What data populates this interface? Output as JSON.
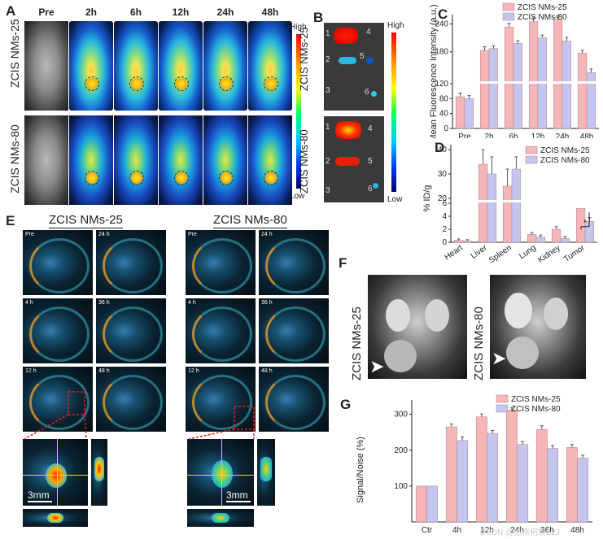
{
  "panels": {
    "A": {
      "letter": "A",
      "times": [
        "Pre",
        "2h",
        "6h",
        "12h",
        "24h",
        "48h"
      ],
      "rows": [
        "ZCIS NMs-25",
        "ZCIS NMs-80"
      ],
      "scale_high": "High",
      "scale_low": "Low"
    },
    "B": {
      "letter": "B",
      "rows": [
        "ZCIS NMs-25",
        "ZCIS NMs-80"
      ],
      "organ_numbers": [
        "1",
        "2",
        "3",
        "4",
        "5",
        "6"
      ],
      "scale_high": "High",
      "scale_low": "Low"
    },
    "E": {
      "letter": "E",
      "groups": [
        "ZCIS NMs-25",
        "ZCIS NMs-80"
      ],
      "times": [
        "Pre",
        "24 h",
        "4 h",
        "36 h",
        "12 h",
        "48 h"
      ],
      "scale_text": "3mm"
    },
    "F": {
      "letter": "F",
      "groups": [
        "ZCIS NMs-25",
        "ZCIS NMs-80"
      ]
    },
    "watermark": "CSDN @无奈何杨123"
  },
  "chart_data": [
    {
      "panel": "C",
      "type": "bar",
      "categories": [
        "Pre",
        "2h",
        "6h",
        "12h",
        "24h",
        "48h"
      ],
      "series": [
        {
          "name": "ZCIS NMs-25",
          "values": [
            85,
            183,
            233,
            245,
            250,
            177
          ],
          "errors": [
            10,
            8,
            8,
            8,
            8,
            6
          ]
        },
        {
          "name": "ZCIS NMs-80",
          "values": [
            80,
            187,
            198,
            210,
            203,
            135
          ],
          "errors": [
            8,
            6,
            6,
            6,
            8,
            8
          ]
        }
      ],
      "ylabel": "Mean Fluorescence Intensity (a.u.)",
      "yticks": [
        "0",
        "40",
        "80",
        "120",
        "180",
        "240"
      ],
      "legend_placement": "top-right",
      "colors": [
        "#f4b6b6",
        "#c5c6ef"
      ]
    },
    {
      "panel": "D",
      "type": "bar",
      "categories": [
        "Heart",
        "Liver",
        "Spleen",
        "Lung",
        "Kidney",
        "Tumor"
      ],
      "series": [
        {
          "name": "ZCIS NMs-25",
          "values": [
            0.3,
            34,
            25,
            1.2,
            2,
            5.2
          ],
          "errors": [
            0.2,
            6,
            7,
            0.3,
            0.4,
            1.2
          ]
        },
        {
          "name": "ZCIS NMs-80",
          "values": [
            0.2,
            30,
            32,
            0.8,
            0.6,
            3.2
          ],
          "errors": [
            0.2,
            7,
            5,
            0.3,
            0.3,
            0.6
          ]
        }
      ],
      "ylabel": "% ID/g",
      "yticks": [
        "0",
        "2",
        "4",
        "6",
        "20",
        "30",
        "40"
      ],
      "annotation": "*",
      "legend_placement": "top-right",
      "colors": [
        "#f4b6b6",
        "#c5c6ef"
      ]
    },
    {
      "panel": "G",
      "type": "bar",
      "categories": [
        "Ctr",
        "4h",
        "12h",
        "24h",
        "36h",
        "48h"
      ],
      "series": [
        {
          "name": "ZCIS NMs-25",
          "values": [
            100,
            265,
            293,
            312,
            258,
            208
          ],
          "errors": [
            0,
            8,
            8,
            6,
            10,
            8
          ]
        },
        {
          "name": "ZCIS NMs-80",
          "values": [
            100,
            227,
            247,
            216,
            205,
            178
          ],
          "errors": [
            0,
            10,
            8,
            8,
            8,
            8
          ]
        }
      ],
      "ylabel": "Signal/Noise (%)",
      "yticks": [
        "100",
        "200",
        "300"
      ],
      "ylim": [
        0,
        340
      ],
      "legend_placement": "top-right",
      "colors": [
        "#f4b6b6",
        "#c5c6ef"
      ]
    }
  ]
}
